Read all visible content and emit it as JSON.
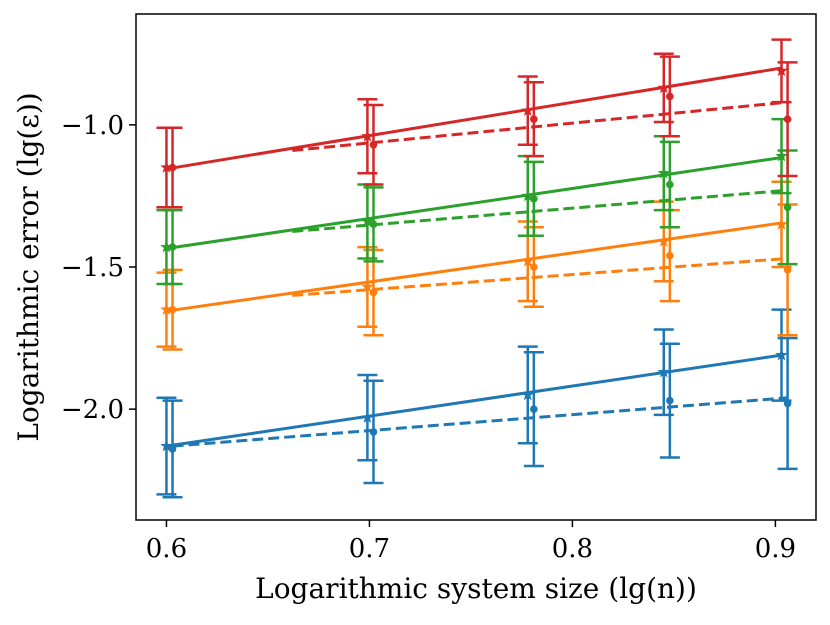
{
  "chart_data": {
    "type": "line",
    "title": "",
    "xlabel": "Logarithmic system size (lg(n))",
    "ylabel": "Logarithmic error (lg(ε))",
    "xlim": [
      0.585,
      0.92
    ],
    "ylim": [
      -2.39,
      -0.61
    ],
    "xticks": [
      0.6,
      0.7,
      0.8,
      0.9
    ],
    "xtick_labels": [
      "0.6",
      "0.7",
      "0.8",
      "0.9"
    ],
    "yticks": [
      -2.0,
      -1.5,
      -1.0
    ],
    "ytick_labels": [
      "−2.0",
      "−1.5",
      "−1.0"
    ],
    "grid": false,
    "x": [
      0.6,
      0.699,
      0.778,
      0.845,
      0.903
    ],
    "series": [
      {
        "name": "blue",
        "color": "#1f77b4",
        "measured": {
          "x": [
            0.6,
            0.699,
            0.778,
            0.845,
            0.903
          ],
          "y": [
            -2.13,
            -2.03,
            -1.95,
            -1.87,
            -1.81
          ],
          "err": [
            0.17,
            0.15,
            0.17,
            0.15,
            0.16
          ]
        },
        "measured_fit": {
          "x": [
            0.6,
            0.903
          ],
          "y": [
            -2.13,
            -1.81
          ]
        },
        "predicted": {
          "x": [
            0.603,
            0.702,
            0.781,
            0.848,
            0.906
          ],
          "y": [
            -2.14,
            -2.08,
            -2.0,
            -1.97,
            -1.98
          ],
          "err": [
            0.17,
            0.18,
            0.2,
            0.2,
            0.23
          ]
        },
        "predicted_fit": {
          "x": [
            0.603,
            0.906
          ],
          "y": [
            -2.13,
            -1.96
          ]
        }
      },
      {
        "name": "orange",
        "color": "#ff7f0e",
        "measured": {
          "x": [
            0.6,
            0.699,
            0.778,
            0.845,
            0.903
          ],
          "y": [
            -1.65,
            -1.57,
            -1.48,
            -1.41,
            -1.35
          ],
          "err": [
            0.13,
            0.14,
            0.14,
            0.14,
            0.15
          ]
        },
        "measured_fit": {
          "x": [
            0.6,
            0.903
          ],
          "y": [
            -1.655,
            -1.345
          ]
        },
        "predicted": {
          "x": [
            0.603,
            0.702,
            0.781,
            0.848,
            0.906
          ],
          "y": [
            -1.65,
            -1.59,
            -1.5,
            -1.46,
            -1.51
          ],
          "err": [
            0.14,
            0.15,
            0.14,
            0.16,
            0.23
          ]
        },
        "predicted_fit": {
          "x": [
            0.662,
            0.906
          ],
          "y": [
            -1.6,
            -1.47
          ]
        }
      },
      {
        "name": "green",
        "color": "#2ca02c",
        "measured": {
          "x": [
            0.6,
            0.699,
            0.778,
            0.845,
            0.903
          ],
          "y": [
            -1.43,
            -1.34,
            -1.25,
            -1.17,
            -1.11
          ],
          "err": [
            0.13,
            0.13,
            0.14,
            0.13,
            0.13
          ]
        },
        "measured_fit": {
          "x": [
            0.6,
            0.903
          ],
          "y": [
            -1.435,
            -1.115
          ]
        },
        "predicted": {
          "x": [
            0.603,
            0.702,
            0.781,
            0.848,
            0.906
          ],
          "y": [
            -1.43,
            -1.35,
            -1.26,
            -1.21,
            -1.29
          ],
          "err": [
            0.13,
            0.13,
            0.13,
            0.15,
            0.2
          ]
        },
        "predicted_fit": {
          "x": [
            0.662,
            0.906
          ],
          "y": [
            -1.375,
            -1.23
          ]
        }
      },
      {
        "name": "red",
        "color": "#d62728",
        "measured": {
          "x": [
            0.6,
            0.699,
            0.778,
            0.845,
            0.903
          ],
          "y": [
            -1.15,
            -1.04,
            -0.95,
            -0.87,
            -0.81
          ],
          "err": [
            0.14,
            0.13,
            0.12,
            0.12,
            0.11
          ]
        },
        "measured_fit": {
          "x": [
            0.6,
            0.903
          ],
          "y": [
            -1.155,
            -0.8
          ]
        },
        "predicted": {
          "x": [
            0.603,
            0.702,
            0.781,
            0.848,
            0.906
          ],
          "y": [
            -1.15,
            -1.07,
            -0.98,
            -0.9,
            -0.98
          ],
          "err": [
            0.14,
            0.14,
            0.13,
            0.14,
            0.2
          ]
        },
        "predicted_fit": {
          "x": [
            0.662,
            0.906
          ],
          "y": [
            -1.09,
            -0.92
          ]
        }
      }
    ]
  }
}
